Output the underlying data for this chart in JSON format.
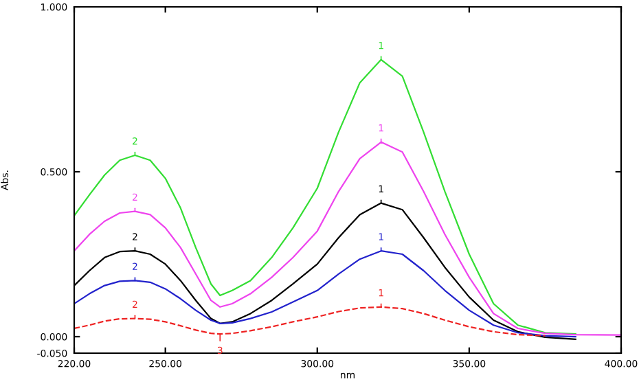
{
  "chart_data": {
    "type": "line",
    "xlabel": "nm",
    "ylabel": "Abs.",
    "x": [
      220,
      225,
      230,
      235,
      240,
      245,
      250,
      255,
      260,
      265,
      268,
      272,
      278,
      285,
      292,
      300,
      307,
      314,
      321,
      328,
      335,
      342,
      350,
      358,
      366,
      375,
      385,
      400
    ],
    "series": [
      {
        "color": "#33dd33",
        "values": [
          0.367,
          0.43,
          0.49,
          0.535,
          0.55,
          0.535,
          0.48,
          0.39,
          0.27,
          0.16,
          0.125,
          0.14,
          0.17,
          0.24,
          0.33,
          0.45,
          0.62,
          0.77,
          0.84,
          0.79,
          0.62,
          0.44,
          0.25,
          0.1,
          0.035,
          0.012,
          0.008,
          null
        ]
      },
      {
        "color": "#ee44ee",
        "values": [
          0.26,
          0.31,
          0.35,
          0.375,
          0.38,
          0.37,
          0.33,
          0.27,
          0.19,
          0.11,
          0.09,
          0.1,
          0.13,
          0.18,
          0.24,
          0.32,
          0.44,
          0.54,
          0.59,
          0.56,
          0.44,
          0.31,
          0.18,
          0.07,
          0.025,
          0.01,
          0.006,
          0.005
        ]
      },
      {
        "color": "#000000",
        "values": [
          0.155,
          0.2,
          0.24,
          0.258,
          0.26,
          0.25,
          0.22,
          0.17,
          0.11,
          0.055,
          0.04,
          0.045,
          0.07,
          0.11,
          0.16,
          0.22,
          0.3,
          0.37,
          0.405,
          0.385,
          0.3,
          0.21,
          0.12,
          0.05,
          0.015,
          -0.002,
          -0.008,
          null
        ]
      },
      {
        "color": "#2222cc",
        "values": [
          0.1,
          0.13,
          0.155,
          0.168,
          0.17,
          0.165,
          0.145,
          0.115,
          0.08,
          0.05,
          0.04,
          0.042,
          0.055,
          0.075,
          0.105,
          0.14,
          0.19,
          0.235,
          0.26,
          0.25,
          0.2,
          0.14,
          0.08,
          0.035,
          0.012,
          0.003,
          0.0,
          null
        ]
      },
      {
        "color": "#ee2222",
        "line_style": "dashed",
        "values": [
          0.025,
          0.035,
          0.047,
          0.054,
          0.055,
          0.053,
          0.045,
          0.033,
          0.02,
          0.01,
          0.008,
          0.01,
          0.018,
          0.03,
          0.045,
          0.06,
          0.076,
          0.087,
          0.09,
          0.085,
          0.07,
          0.05,
          0.03,
          0.015,
          0.006,
          0.003,
          null,
          null
        ]
      }
    ],
    "xlim": [
      220,
      400
    ],
    "xticks": [
      {
        "value": 220,
        "label": "220.00"
      },
      {
        "value": 250,
        "label": "250.00"
      },
      {
        "value": 300,
        "label": "300.00"
      },
      {
        "value": 350,
        "label": "350.00"
      },
      {
        "value": 400,
        "label": "400.00"
      }
    ],
    "ylim": [
      -0.05,
      1.0
    ],
    "yticks": [
      {
        "value": -0.05,
        "label": "-0.050"
      },
      {
        "value": 0,
        "label": "0.000"
      },
      {
        "value": 0.5,
        "label": "0.500"
      },
      {
        "value": 1.0,
        "label": "1.000"
      }
    ],
    "grid": false,
    "line_style": "solid",
    "marker": "none",
    "annotations": [
      {
        "text": "2",
        "x": 240,
        "y": 0.55
      },
      {
        "text": "1",
        "x": 321,
        "y": 0.84
      },
      {
        "text": "2",
        "x": 240,
        "y": 0.38
      },
      {
        "text": "1",
        "x": 321,
        "y": 0.59
      },
      {
        "text": "2",
        "x": 240,
        "y": 0.26
      },
      {
        "text": "1",
        "x": 321,
        "y": 0.405
      },
      {
        "text": "2",
        "x": 240,
        "y": 0.17
      },
      {
        "text": "1",
        "x": 321,
        "y": 0.26
      },
      {
        "text": "2",
        "x": 240,
        "y": 0.055
      },
      {
        "text": "1",
        "x": 321,
        "y": 0.09
      },
      {
        "text": "3",
        "x": 268,
        "y": 0.008
      }
    ]
  }
}
